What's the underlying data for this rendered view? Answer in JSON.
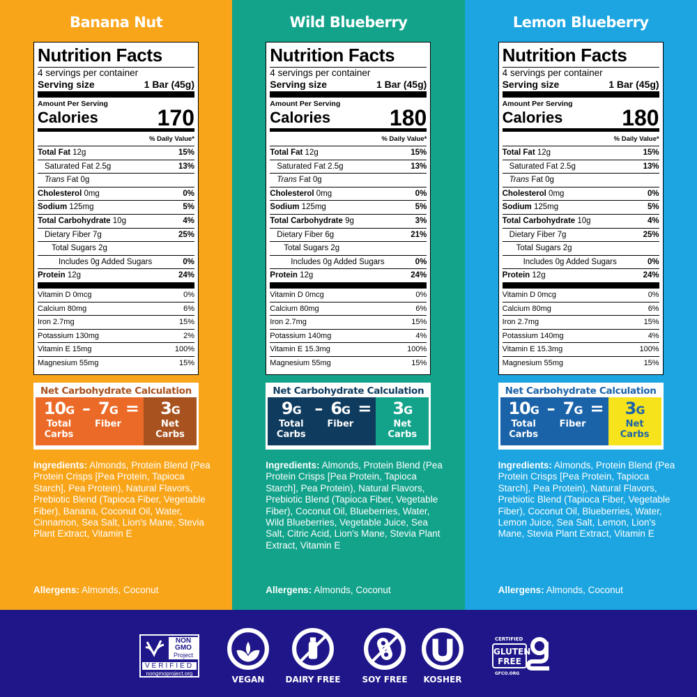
{
  "panels": [
    {
      "name": "Banana Nut",
      "bg": "#f9a51a",
      "nc_left": "#ec6a27",
      "nc_right": "#a8521f",
      "nc_title_color": "#a8521f",
      "nc_right_text": "#ffffff",
      "servings": "4 servings per container",
      "serving_label": "Serving size",
      "serving_size": "1 Bar (45g)",
      "amount_per_serving": "Amount Per Serving",
      "calories_label": "Calories",
      "calories": "170",
      "dv_header": "% Daily Value*",
      "rows": [
        {
          "b": "Total Fat",
          "t": " 12g",
          "dv": "15%"
        },
        {
          "t": "Saturated Fat 2.5g",
          "dv": "13%"
        },
        {
          "i": "Trans",
          "t": " Fat 0g",
          "dv": ""
        },
        {
          "b": "Cholesterol",
          "t": " 0mg",
          "dv": "0%"
        },
        {
          "b": "Sodium",
          "t": " 125mg",
          "dv": "5%"
        },
        {
          "b": "Total Carbohydrate",
          "t": " 10g",
          "dv": "4%"
        },
        {
          "t": "Dietary Fiber 7g",
          "dv": "25%"
        },
        {
          "t": "Total Sugars 2g",
          "dv": ""
        },
        {
          "t": "Includes 0g Added Sugars",
          "dv": "0%"
        },
        {
          "b": "Protein",
          "t": " 12g",
          "dv": "24%"
        }
      ],
      "vitamins": [
        {
          "t": "Vitamin D 0mcg",
          "dv": "0%"
        },
        {
          "t": "Calcium 80mg",
          "dv": "6%"
        },
        {
          "t": "Iron 2.7mg",
          "dv": "15%"
        },
        {
          "t": "Potassium 130mg",
          "dv": "2%"
        },
        {
          "t": "Vitamin E 15mg",
          "dv": "100%"
        },
        {
          "t": "Magnesium 55mg",
          "dv": "15%"
        }
      ],
      "net_carb": {
        "title": "Net Carbohydrate Calculation",
        "total": "10",
        "fiber": "7",
        "net": "3",
        "unit": "G",
        "minus": "–",
        "equals": "=",
        "total_label": "Total Carbs",
        "fiber_label": "Fiber",
        "net_label": "Net Carbs"
      },
      "ingredients_label": "Ingredients:",
      "ingredients": " Almonds, Protein Blend (Pea Protein Crisps [Pea Protein, Tapioca Starch], Pea Protein), Natural Flavors, Prebiotic Blend (Tapioca Fiber, Vegetable Fiber), Banana, Coconut Oil, Water, Cinnamon, Sea Salt, Lion's Mane, Stevia Plant Extract, Vitamin E",
      "allergens_label": "Allergens:",
      "allergens": " Almonds, Coconut"
    },
    {
      "name": "Wild Blueberry",
      "bg": "#13a38b",
      "nc_left": "#0f3b5e",
      "nc_right": "#13a38b",
      "nc_title_color": "#0f3b5e",
      "nc_right_text": "#ffffff",
      "servings": "4 servings per container",
      "serving_label": "Serving size",
      "serving_size": "1 Bar (45g)",
      "amount_per_serving": "Amount Per Serving",
      "calories_label": "Calories",
      "calories": "180",
      "dv_header": "% Daily Value*",
      "rows": [
        {
          "b": "Total Fat",
          "t": " 12g",
          "dv": "15%"
        },
        {
          "t": "Saturated Fat 2.5g",
          "dv": "13%"
        },
        {
          "i": "Trans",
          "t": " Fat 0g",
          "dv": ""
        },
        {
          "b": "Cholesterol",
          "t": " 0mg",
          "dv": "0%"
        },
        {
          "b": "Sodium",
          "t": " 125mg",
          "dv": "5%"
        },
        {
          "b": "Total Carbohydrate",
          "t": " 9g",
          "dv": "3%"
        },
        {
          "t": "Dietary Fiber 6g",
          "dv": "21%"
        },
        {
          "t": "Total Sugars 2g",
          "dv": ""
        },
        {
          "t": "Includes 0g Added Sugars",
          "dv": "0%"
        },
        {
          "b": "Protein",
          "t": " 12g",
          "dv": "24%"
        }
      ],
      "vitamins": [
        {
          "t": "Vitamin D 0mcg",
          "dv": "0%"
        },
        {
          "t": "Calcium 80mg",
          "dv": "6%"
        },
        {
          "t": "Iron 2.7mg",
          "dv": "15%"
        },
        {
          "t": "Potassium 140mg",
          "dv": "4%"
        },
        {
          "t": "Vitamin E 15.3mg",
          "dv": "100%"
        },
        {
          "t": "Magnesium 55mg",
          "dv": "15%"
        }
      ],
      "net_carb": {
        "title": "Net Carbohydrate Calculation",
        "total": "9",
        "fiber": "6",
        "net": "3",
        "unit": "G",
        "minus": "–",
        "equals": "=",
        "total_label": "Total Carbs",
        "fiber_label": "Fiber",
        "net_label": "Net Carbs"
      },
      "ingredients_label": "Ingredients:",
      "ingredients": " Almonds, Protein Blend (Pea Protein Crisps [Pea Protein, Tapioca Starch], Pea Protein), Natural Flavors, Prebiotic Blend (Tapioca Fiber, Vegetable Fiber), Coconut Oil, Blueberries, Water, Wild Blueberries, Vegetable Juice, Sea Salt, Citric Acid, Lion's Mane, Stevia Plant Extract, Vitamin E",
      "allergens_label": "Allergens:",
      "allergens": " Almonds, Coconut"
    },
    {
      "name": "Lemon Blueberry",
      "bg": "#1ca5e0",
      "nc_left": "#1b63a9",
      "nc_right": "#f6e31c",
      "nc_title_color": "#1b63a9",
      "nc_right_text": "#1b63a9",
      "servings": "4 servings per container",
      "serving_label": "Serving size",
      "serving_size": "1 Bar (45g)",
      "amount_per_serving": "Amount Per Serving",
      "calories_label": "Calories",
      "calories": "180",
      "dv_header": "% Daily Value*",
      "rows": [
        {
          "b": "Total Fat",
          "t": " 12g",
          "dv": "15%"
        },
        {
          "t": "Saturated Fat 2.5g",
          "dv": "13%"
        },
        {
          "i": "Trans",
          "t": " Fat 0g",
          "dv": ""
        },
        {
          "b": "Cholesterol",
          "t": " 0mg",
          "dv": "0%"
        },
        {
          "b": "Sodium",
          "t": " 125mg",
          "dv": "5%"
        },
        {
          "b": "Total Carbohydrate",
          "t": " 10g",
          "dv": "4%"
        },
        {
          "t": "Dietary Fiber 7g",
          "dv": "25%"
        },
        {
          "t": "Total Sugars 2g",
          "dv": ""
        },
        {
          "t": "Includes 0g Added Sugars",
          "dv": "0%"
        },
        {
          "b": "Protein",
          "t": " 12g",
          "dv": "24%"
        }
      ],
      "vitamins": [
        {
          "t": "Vitamin D 0mcg",
          "dv": "0%"
        },
        {
          "t": "Calcium 80mg",
          "dv": "6%"
        },
        {
          "t": "Iron 2.7mg",
          "dv": "15%"
        },
        {
          "t": "Potassium 140mg",
          "dv": "4%"
        },
        {
          "t": "Vitamin E 15.3mg",
          "dv": "100%"
        },
        {
          "t": "Magnesium 55mg",
          "dv": "15%"
        }
      ],
      "net_carb": {
        "title": "Net Carbohydrate Calculation",
        "total": "10",
        "fiber": "7",
        "net": "3",
        "unit": "G",
        "minus": "–",
        "equals": "=",
        "total_label": "Total Carbs",
        "fiber_label": "Fiber",
        "net_label": "Net Carbs"
      },
      "ingredients_label": "Ingredients:",
      "ingredients": " Almonds, Protein Blend (Pea Protein Crisps [Pea Protein, Tapioca Starch], Pea Protein), Natural Flavors, Prebiotic Blend (Tapioca Fiber, Vegetable Fiber), Coconut Oil, Blueberries, Water, Lemon Juice, Sea Salt, Lemon, Lion's Mane, Stevia Plant Extract, Vitamin E",
      "allergens_label": "Allergens:",
      "allergens": " Almonds, Coconut"
    }
  ],
  "footer": {
    "bg": "#1e1689",
    "non_gmo": {
      "line1": "NON",
      "line2": "GMO",
      "line3": "Project",
      "verified": "VERIFIED",
      "url": "nongmoproject.org"
    },
    "badges": [
      {
        "icon": "vegan-leaf-icon",
        "label": "VEGAN"
      },
      {
        "icon": "no-dairy-icon",
        "label": "DAIRY FREE"
      },
      {
        "icon": "no-soy-icon",
        "label": "SOY FREE"
      },
      {
        "icon": "kosher-u-icon",
        "label": "KOSHER"
      }
    ],
    "gluten_free": {
      "certified": "CERTIFIED",
      "line1": "GLUTEN",
      "line2": "FREE",
      "url": "GFCO.ORG"
    }
  }
}
